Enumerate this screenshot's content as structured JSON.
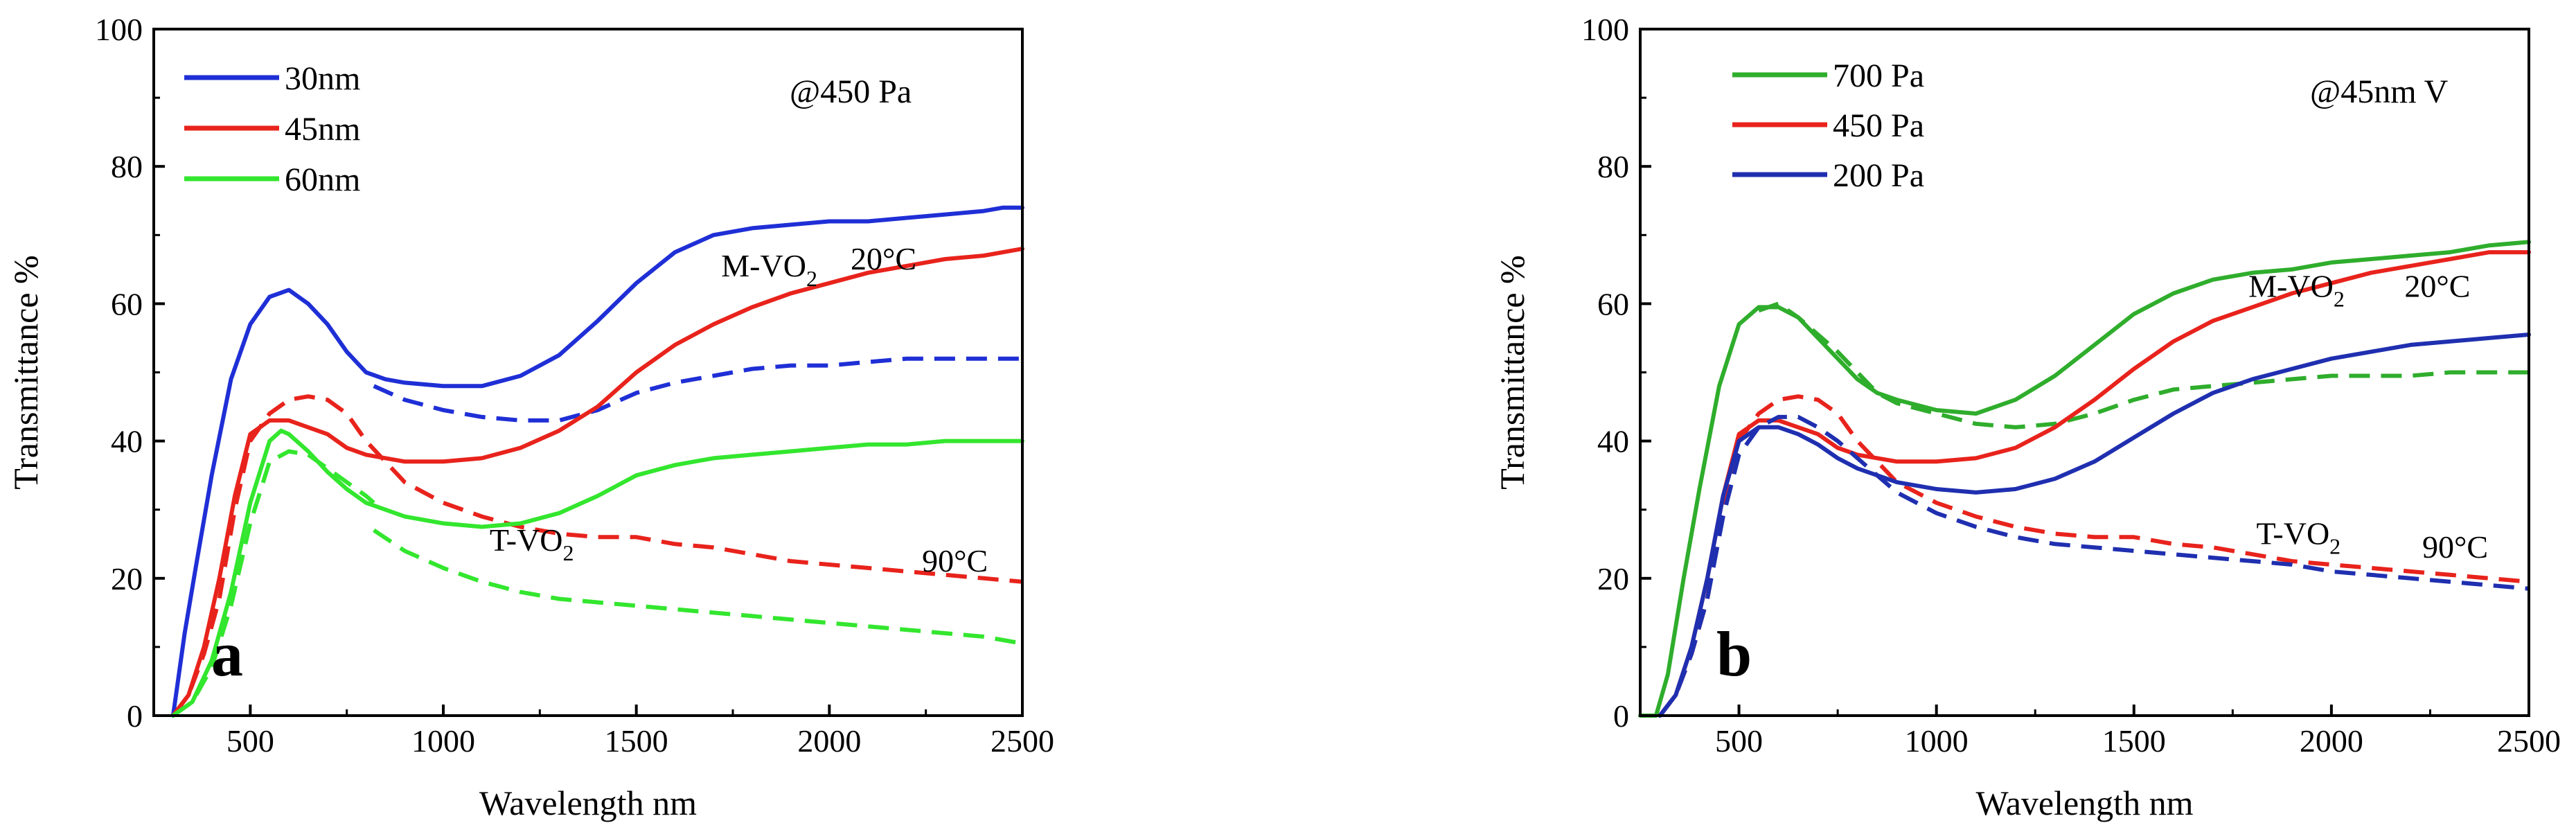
{
  "chart_data": [
    {
      "type": "line",
      "panel_label": "a",
      "xlabel": "Wavelength nm",
      "ylabel": "Transmittance %",
      "xlim": [
        250,
        2500
      ],
      "ylim": [
        0,
        100
      ],
      "xticks": [
        500,
        1000,
        1500,
        2000,
        2500
      ],
      "yticks": [
        0,
        20,
        40,
        60,
        80,
        100
      ],
      "condition": "@450 Pa",
      "annotations": {
        "m_phase": {
          "main": "M-VO",
          "sub": "2",
          "at": [
            1720,
            64
          ]
        },
        "m_temp": {
          "text": "20°C",
          "at": [
            2055,
            65
          ]
        },
        "t_phase": {
          "main": "T-VO",
          "sub": "2",
          "at": [
            1120,
            24
          ]
        },
        "t_temp": {
          "text": "90°C",
          "at": [
            2240,
            21
          ]
        }
      },
      "legend": [
        {
          "label": "30nm",
          "color": "#1f2fd6"
        },
        {
          "label": "45nm",
          "color": "#e8231c"
        },
        {
          "label": "60nm",
          "color": "#33e62e"
        }
      ],
      "series": [
        {
          "name": "30nm 20°C",
          "color": "#1f2fd6",
          "dash": false,
          "x": [
            300,
            330,
            360,
            400,
            450,
            500,
            550,
            600,
            650,
            700,
            750,
            800,
            850,
            900,
            1000,
            1100,
            1200,
            1300,
            1400,
            1500,
            1600,
            1700,
            1800,
            1900,
            2000,
            2100,
            2200,
            2300,
            2400,
            2450,
            2500
          ],
          "y": [
            0,
            12,
            22,
            35,
            49,
            57,
            61,
            62,
            60,
            57,
            53,
            50,
            49,
            48.5,
            48,
            48,
            49.5,
            52.5,
            57.5,
            63,
            67.5,
            70,
            71,
            71.5,
            72,
            72,
            72.5,
            73,
            73.5,
            74,
            74
          ]
        },
        {
          "name": "30nm 90°C",
          "color": "#1f2fd6",
          "dash": true,
          "x": [
            820,
            900,
            1000,
            1100,
            1200,
            1300,
            1400,
            1500,
            1600,
            1700,
            1800,
            1900,
            2000,
            2100,
            2200,
            2300,
            2400,
            2500
          ],
          "y": [
            48,
            46,
            44.5,
            43.5,
            43,
            43,
            44.5,
            47,
            48.5,
            49.5,
            50.5,
            51,
            51,
            51.5,
            52,
            52,
            52,
            52
          ]
        },
        {
          "name": "45nm 20°C",
          "color": "#e8231c",
          "dash": false,
          "x": [
            300,
            340,
            380,
            420,
            460,
            500,
            550,
            600,
            650,
            700,
            750,
            800,
            900,
            1000,
            1100,
            1200,
            1300,
            1400,
            1500,
            1600,
            1700,
            1800,
            1900,
            2000,
            2100,
            2200,
            2300,
            2400,
            2450,
            2500
          ],
          "y": [
            0,
            3,
            10,
            20,
            32,
            41,
            43,
            43,
            42,
            41,
            39,
            38,
            37,
            37,
            37.5,
            39,
            41.5,
            45,
            50,
            54,
            57,
            59.5,
            61.5,
            63,
            64.5,
            65.5,
            66.5,
            67,
            67.5,
            68
          ]
        },
        {
          "name": "45nm 90°C",
          "color": "#e8231c",
          "dash": true,
          "x": [
            300,
            340,
            380,
            420,
            460,
            500,
            550,
            600,
            650,
            700,
            750,
            800,
            850,
            900,
            1000,
            1100,
            1200,
            1300,
            1400,
            1500,
            1600,
            1700,
            1800,
            1900,
            2000,
            2100,
            2200,
            2300,
            2400,
            2500
          ],
          "y": [
            0,
            3,
            9,
            17,
            30,
            40,
            44,
            46,
            46.5,
            46,
            44,
            40,
            37,
            34,
            31,
            29,
            27.5,
            26.5,
            26,
            26,
            25,
            24.5,
            23.5,
            22.5,
            22,
            21.5,
            21,
            20.5,
            20,
            19.5
          ]
        },
        {
          "name": "60nm 20°C",
          "color": "#33e62e",
          "dash": false,
          "x": [
            300,
            350,
            400,
            450,
            500,
            550,
            580,
            600,
            650,
            700,
            750,
            800,
            900,
            1000,
            1100,
            1200,
            1300,
            1400,
            1500,
            1600,
            1700,
            1800,
            1900,
            2000,
            2100,
            2200,
            2300,
            2400,
            2500
          ],
          "y": [
            0,
            2,
            8,
            18,
            31,
            40,
            41.5,
            41,
            38.5,
            35.5,
            33,
            31,
            29,
            28,
            27.5,
            28,
            29.5,
            32,
            35,
            36.5,
            37.5,
            38,
            38.5,
            39,
            39.5,
            39.5,
            40,
            40,
            40
          ]
        },
        {
          "name": "60nm 90°C",
          "color": "#33e62e",
          "dash": true,
          "x": [
            300,
            350,
            400,
            450,
            500,
            550,
            600,
            650,
            700,
            750,
            800,
            820
          ],
          "y": [
            0,
            2,
            7,
            16,
            28,
            37,
            38.5,
            38,
            36,
            34,
            32,
            31
          ]
        },
        {
          "name": "60nm 90°C (long)",
          "color": "#33e62e",
          "dash": true,
          "x": [
            820,
            900,
            1000,
            1100,
            1200,
            1300,
            1400,
            1500,
            1600,
            1700,
            1800,
            1900,
            2000,
            2100,
            2200,
            2300,
            2400,
            2500
          ],
          "y": [
            27,
            24,
            21.5,
            19.5,
            18,
            17,
            16.5,
            16,
            15.5,
            15,
            14.5,
            14,
            13.5,
            13,
            12.5,
            12,
            11.5,
            10.5
          ]
        }
      ]
    },
    {
      "type": "line",
      "panel_label": "b",
      "xlabel": "Wavelength nm",
      "ylabel": "Transmittance %",
      "xlim": [
        250,
        2500
      ],
      "ylim": [
        0,
        100
      ],
      "xticks": [
        500,
        1000,
        1500,
        2000,
        2500
      ],
      "yticks": [
        0,
        20,
        40,
        60,
        80,
        100
      ],
      "condition": "@45nm V",
      "annotations": {
        "m_phase": {
          "main": "M-VO",
          "sub": "2",
          "at": [
            1790,
            61
          ]
        },
        "m_temp": {
          "text": "20°C",
          "at": [
            2185,
            61
          ]
        },
        "t_phase": {
          "main": "T-VO",
          "sub": "2",
          "at": [
            1810,
            25
          ]
        },
        "t_temp": {
          "text": "90°C",
          "at": [
            2230,
            23
          ]
        }
      },
      "legend": [
        {
          "label": "700 Pa",
          "color": "#2fad2c"
        },
        {
          "label": "450 Pa",
          "color": "#e8231c"
        },
        {
          "label": "200 Pa",
          "color": "#1f2fb0"
        }
      ],
      "series": [
        {
          "name": "700 Pa 20°C",
          "color": "#2fad2c",
          "dash": false,
          "x": [
            250,
            290,
            320,
            360,
            400,
            450,
            500,
            550,
            600,
            650,
            700,
            750,
            800,
            850,
            900,
            1000,
            1100,
            1200,
            1300,
            1400,
            1500,
            1600,
            1700,
            1800,
            1900,
            2000,
            2100,
            2200,
            2300,
            2400,
            2500
          ],
          "y": [
            0,
            0,
            6,
            20,
            33,
            48,
            57,
            59.5,
            59.5,
            58,
            55,
            52,
            49,
            47,
            46,
            44.5,
            44,
            46,
            49.5,
            54,
            58.5,
            61.5,
            63.5,
            64.5,
            65,
            66,
            66.5,
            67,
            67.5,
            68.5,
            69
          ]
        },
        {
          "name": "700 Pa 90°C",
          "color": "#2fad2c",
          "dash": true,
          "x": [
            550,
            600,
            650,
            700,
            750,
            800,
            850,
            900,
            1000,
            1100,
            1200,
            1300,
            1400,
            1500,
            1600,
            1700,
            1800,
            1900,
            2000,
            2100,
            2200,
            2300,
            2400,
            2500
          ],
          "y": [
            59,
            60,
            58,
            55.5,
            53,
            50,
            47,
            45.5,
            44,
            42.5,
            42,
            42.5,
            44,
            46,
            47.5,
            48,
            48.5,
            49,
            49.5,
            49.5,
            49.5,
            50,
            50,
            50
          ]
        },
        {
          "name": "450 Pa 20°C",
          "color": "#e8231c",
          "dash": false,
          "x": [
            300,
            340,
            380,
            420,
            460,
            500,
            550,
            600,
            650,
            700,
            750,
            800,
            900,
            1000,
            1100,
            1200,
            1300,
            1400,
            1500,
            1600,
            1700,
            1800,
            1900,
            2000,
            2100,
            2200,
            2300,
            2400,
            2500
          ],
          "y": [
            0,
            3,
            10,
            20,
            32,
            41,
            43,
            43,
            42,
            41,
            39,
            38,
            37,
            37,
            37.5,
            39,
            42,
            46,
            50.5,
            54.5,
            57.5,
            59.5,
            61.5,
            63,
            64.5,
            65.5,
            66.5,
            67.5,
            67.5
          ]
        },
        {
          "name": "450 Pa 90°C",
          "color": "#e8231c",
          "dash": true,
          "x": [
            300,
            340,
            380,
            420,
            460,
            500,
            550,
            600,
            650,
            700,
            750,
            800,
            850,
            900,
            1000,
            1100,
            1200,
            1300,
            1400,
            1500,
            1600,
            1700,
            1800,
            1900,
            2000,
            2100,
            2200,
            2300,
            2400,
            2500
          ],
          "y": [
            0,
            3,
            9,
            17,
            30,
            40,
            44,
            46,
            46.5,
            46,
            44,
            40,
            37,
            34,
            31,
            29,
            27.5,
            26.5,
            26,
            26,
            25,
            24.5,
            23.5,
            22.5,
            22,
            21.5,
            21,
            20.5,
            20,
            19.5
          ]
        },
        {
          "name": "200 Pa 20°C",
          "color": "#1f2fb0",
          "dash": false,
          "x": [
            300,
            340,
            380,
            420,
            460,
            500,
            550,
            600,
            650,
            700,
            750,
            800,
            900,
            1000,
            1100,
            1200,
            1300,
            1400,
            1500,
            1600,
            1700,
            1800,
            1900,
            2000,
            2100,
            2200,
            2300,
            2400,
            2500
          ],
          "y": [
            0,
            3,
            10,
            20,
            32,
            40,
            42,
            42,
            41,
            39.5,
            37.5,
            36,
            34,
            33,
            32.5,
            33,
            34.5,
            37,
            40.5,
            44,
            47,
            49,
            50.5,
            52,
            53,
            54,
            54.5,
            55,
            55.5
          ]
        },
        {
          "name": "200 Pa 90°C",
          "color": "#1f2fb0",
          "dash": true,
          "x": [
            300,
            340,
            380,
            420,
            460,
            500,
            550,
            600,
            650,
            700,
            750,
            800,
            850,
            900,
            1000,
            1100,
            1200,
            1300,
            1400,
            1500,
            1600,
            1700,
            1800,
            1900,
            2000,
            2100,
            2200,
            2300,
            2400,
            2500
          ],
          "y": [
            0,
            3,
            9,
            17,
            29,
            38,
            42,
            43.5,
            43.5,
            42,
            40,
            37.5,
            35,
            32.5,
            29.5,
            27.5,
            26,
            25,
            24.5,
            24,
            23.5,
            23,
            22.5,
            22,
            21,
            20.5,
            20,
            19.5,
            19,
            18.5
          ]
        }
      ]
    }
  ]
}
